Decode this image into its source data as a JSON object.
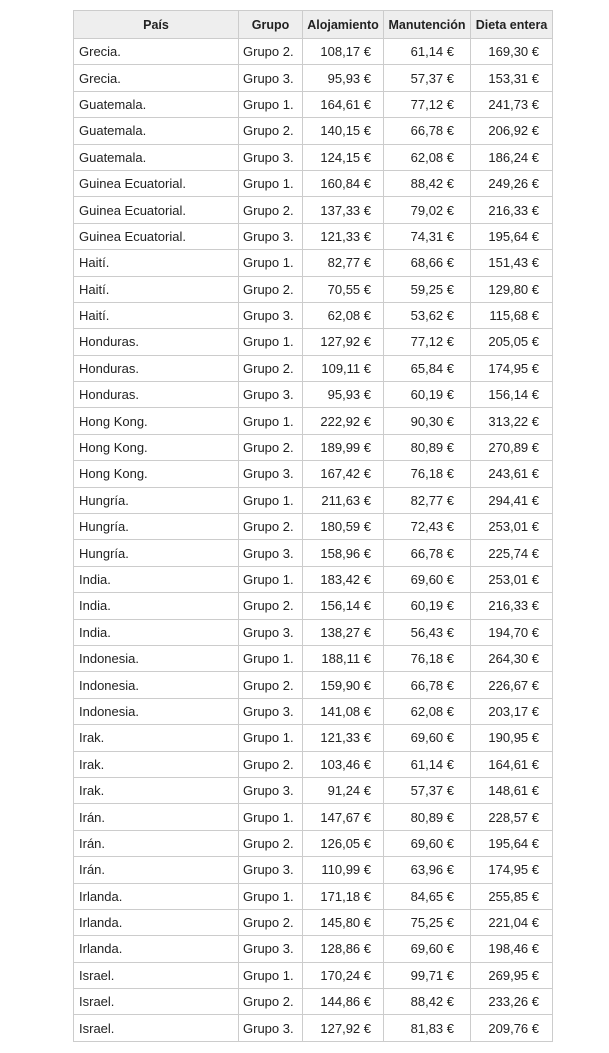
{
  "table": {
    "headers": [
      "País",
      "Grupo",
      "Alojamiento",
      "Manutención",
      "Dieta entera"
    ],
    "rows": [
      [
        "Grecia.",
        "Grupo 2.",
        "108,17 €",
        "61,14 €",
        "169,30 €"
      ],
      [
        "Grecia.",
        "Grupo 3.",
        "95,93 €",
        "57,37 €",
        "153,31 €"
      ],
      [
        "Guatemala.",
        "Grupo 1.",
        "164,61 €",
        "77,12 €",
        "241,73 €"
      ],
      [
        "Guatemala.",
        "Grupo 2.",
        "140,15 €",
        "66,78 €",
        "206,92 €"
      ],
      [
        "Guatemala.",
        "Grupo 3.",
        "124,15 €",
        "62,08 €",
        "186,24 €"
      ],
      [
        "Guinea Ecuatorial.",
        "Grupo 1.",
        "160,84 €",
        "88,42 €",
        "249,26 €"
      ],
      [
        "Guinea Ecuatorial.",
        "Grupo 2.",
        "137,33 €",
        "79,02 €",
        "216,33 €"
      ],
      [
        "Guinea Ecuatorial.",
        "Grupo 3.",
        "121,33 €",
        "74,31 €",
        "195,64 €"
      ],
      [
        "Haití.",
        "Grupo 1.",
        "82,77 €",
        "68,66 €",
        "151,43 €"
      ],
      [
        "Haití.",
        "Grupo 2.",
        "70,55 €",
        "59,25 €",
        "129,80 €"
      ],
      [
        "Haití.",
        "Grupo 3.",
        "62,08 €",
        "53,62 €",
        "115,68 €"
      ],
      [
        "Honduras.",
        "Grupo 1.",
        "127,92 €",
        "77,12 €",
        "205,05 €"
      ],
      [
        "Honduras.",
        "Grupo 2.",
        "109,11 €",
        "65,84 €",
        "174,95 €"
      ],
      [
        "Honduras.",
        "Grupo 3.",
        "95,93 €",
        "60,19 €",
        "156,14 €"
      ],
      [
        "Hong Kong.",
        "Grupo 1.",
        "222,92 €",
        "90,30 €",
        "313,22 €"
      ],
      [
        "Hong Kong.",
        "Grupo 2.",
        "189,99 €",
        "80,89 €",
        "270,89 €"
      ],
      [
        "Hong Kong.",
        "Grupo 3.",
        "167,42 €",
        "76,18 €",
        "243,61 €"
      ],
      [
        "Hungría.",
        "Grupo 1.",
        "211,63 €",
        "82,77 €",
        "294,41 €"
      ],
      [
        "Hungría.",
        "Grupo 2.",
        "180,59 €",
        "72,43 €",
        "253,01 €"
      ],
      [
        "Hungría.",
        "Grupo 3.",
        "158,96 €",
        "66,78 €",
        "225,74 €"
      ],
      [
        "India.",
        "Grupo 1.",
        "183,42 €",
        "69,60 €",
        "253,01 €"
      ],
      [
        "India.",
        "Grupo 2.",
        "156,14 €",
        "60,19 €",
        "216,33 €"
      ],
      [
        "India.",
        "Grupo 3.",
        "138,27 €",
        "56,43 €",
        "194,70 €"
      ],
      [
        "Indonesia.",
        "Grupo 1.",
        "188,11 €",
        "76,18 €",
        "264,30 €"
      ],
      [
        "Indonesia.",
        "Grupo 2.",
        "159,90 €",
        "66,78 €",
        "226,67 €"
      ],
      [
        "Indonesia.",
        "Grupo 3.",
        "141,08 €",
        "62,08 €",
        "203,17 €"
      ],
      [
        "Irak.",
        "Grupo 1.",
        "121,33 €",
        "69,60 €",
        "190,95 €"
      ],
      [
        "Irak.",
        "Grupo 2.",
        "103,46 €",
        "61,14 €",
        "164,61 €"
      ],
      [
        "Irak.",
        "Grupo 3.",
        "91,24 €",
        "57,37 €",
        "148,61 €"
      ],
      [
        "Irán.",
        "Grupo 1.",
        "147,67 €",
        "80,89 €",
        "228,57 €"
      ],
      [
        "Irán.",
        "Grupo 2.",
        "126,05 €",
        "69,60 €",
        "195,64 €"
      ],
      [
        "Irán.",
        "Grupo 3.",
        "110,99 €",
        "63,96 €",
        "174,95 €"
      ],
      [
        "Irlanda.",
        "Grupo 1.",
        "171,18 €",
        "84,65 €",
        "255,85 €"
      ],
      [
        "Irlanda.",
        "Grupo 2.",
        "145,80 €",
        "75,25 €",
        "221,04 €"
      ],
      [
        "Irlanda.",
        "Grupo 3.",
        "128,86 €",
        "69,60 €",
        "198,46 €"
      ],
      [
        "Israel.",
        "Grupo 1.",
        "170,24 €",
        "99,71 €",
        "269,95 €"
      ],
      [
        "Israel.",
        "Grupo 2.",
        "144,86 €",
        "88,42 €",
        "233,26 €"
      ],
      [
        "Israel.",
        "Grupo 3.",
        "127,92 €",
        "81,83 €",
        "209,76 €"
      ]
    ]
  }
}
